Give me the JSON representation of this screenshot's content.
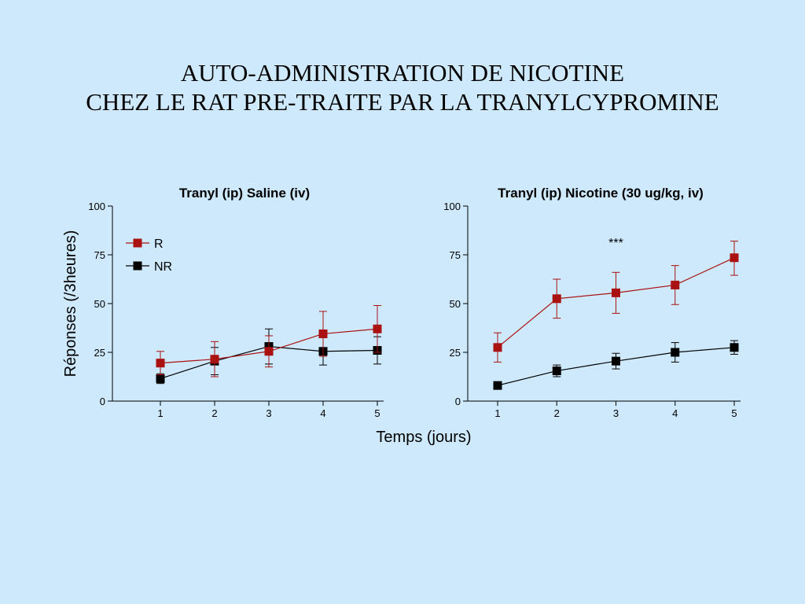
{
  "slide": {
    "title_line1": "AUTO-ADMINISTRATION DE NICOTINE",
    "title_line2": "CHEZ LE RAT PRE-TRAITE PAR LA TRANYLCYPROMINE",
    "ylabel": "Réponses (/3heures)",
    "xlabel": "Temps (jours)"
  },
  "colors": {
    "R": "#aa1111",
    "NR": "#000000",
    "background": "#cde9fb"
  },
  "chart_data": [
    {
      "type": "line",
      "title": "Tranyl (ip) Saline (iv)",
      "x": [
        1,
        2,
        3,
        4,
        5
      ],
      "ylim": [
        0,
        100
      ],
      "yticks": [
        0,
        25,
        50,
        75,
        100
      ],
      "grid": false,
      "legend_position": "top-left",
      "series": [
        {
          "name": "R",
          "color": "#aa1111",
          "values": [
            19.5,
            21.5,
            25.5,
            34.5,
            37
          ],
          "err_low": [
            13.5,
            12.5,
            17.5,
            23,
            25
          ],
          "err_high": [
            25.5,
            30.5,
            33.5,
            46,
            49
          ]
        },
        {
          "name": "NR",
          "color": "#000000",
          "values": [
            11.5,
            20.5,
            28,
            25.5,
            26
          ],
          "err_low": [
            9,
            13.5,
            19,
            18.5,
            19
          ],
          "err_high": [
            14,
            27.5,
            37,
            32.5,
            33
          ]
        }
      ],
      "annotation": ""
    },
    {
      "type": "line",
      "title": "Tranyl (ip) Nicotine (30 ug/kg, iv)",
      "x": [
        1,
        2,
        3,
        4,
        5
      ],
      "ylim": [
        0,
        100
      ],
      "yticks": [
        0,
        25,
        50,
        75,
        100
      ],
      "grid": false,
      "series": [
        {
          "name": "R",
          "color": "#aa1111",
          "values": [
            27.5,
            52.5,
            55.5,
            59.5,
            73.5
          ],
          "err_low": [
            20,
            42.5,
            45,
            49.5,
            64.5
          ],
          "err_high": [
            35,
            62.5,
            66,
            69.5,
            82
          ]
        },
        {
          "name": "NR",
          "color": "#000000",
          "values": [
            8,
            15.5,
            20.5,
            25,
            27.5
          ],
          "err_low": [
            8,
            12.5,
            16.5,
            20,
            24
          ],
          "err_high": [
            8,
            18.5,
            24.5,
            30,
            31
          ]
        }
      ],
      "annotation": {
        "text": "***",
        "x": 3,
        "y": 81
      }
    }
  ]
}
